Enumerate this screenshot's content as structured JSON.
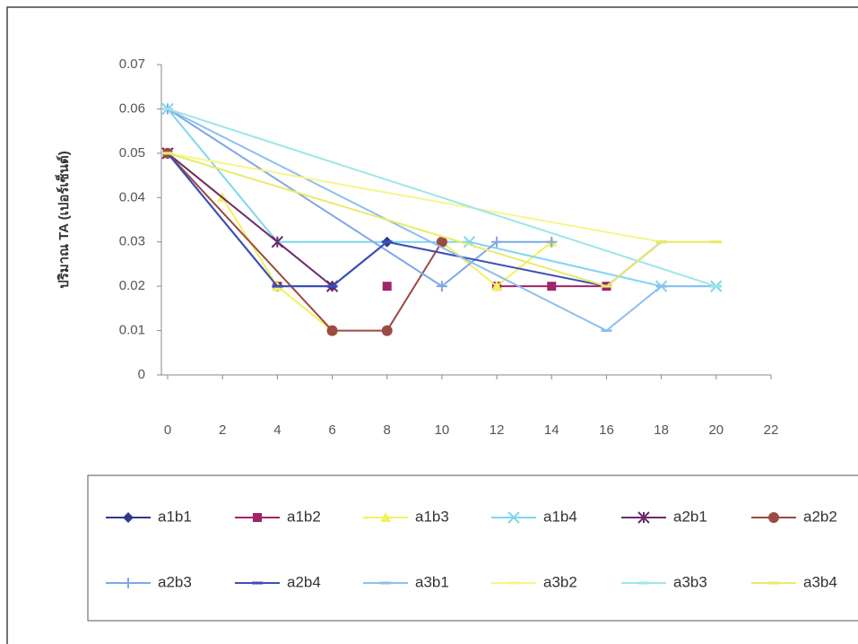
{
  "chart_data": {
    "type": "line",
    "y_label": "ปริมาณ TA (เปอร์เซ็นต์)",
    "xlim": [
      0,
      22
    ],
    "xticks": [
      0,
      2,
      4,
      6,
      8,
      10,
      12,
      14,
      16,
      18,
      20,
      22
    ],
    "ylim": [
      0,
      0.07
    ],
    "yticks": [
      0,
      0.01,
      0.02,
      0.03,
      0.04,
      0.05,
      0.06,
      0.07
    ],
    "grid": false,
    "legend": "bottom",
    "series": [
      {
        "name": "a1b1",
        "color": "#2e3a8c",
        "marker": "diamond",
        "x": [
          0,
          4,
          6,
          8
        ],
        "values": [
          0.05,
          0.02,
          0.02,
          0.03
        ]
      },
      {
        "name": "a1b2",
        "color": "#a0246c",
        "marker": "square",
        "x": [
          0,
          2,
          4,
          6,
          8,
          10,
          12,
          14,
          16
        ],
        "values": [
          0.05,
          null,
          0.02,
          null,
          0.02,
          null,
          0.02,
          0.02,
          0.02
        ]
      },
      {
        "name": "a1b3",
        "color": "#f2f25a",
        "marker": "triangle",
        "x": [
          0,
          2,
          4,
          6,
          8,
          10,
          12,
          14
        ],
        "values": [
          0.05,
          0.04,
          0.02,
          0.01,
          null,
          0.03,
          0.02,
          0.03
        ]
      },
      {
        "name": "a1b4",
        "color": "#7fd6ee",
        "marker": "x",
        "x": [
          0,
          4,
          11,
          18,
          20
        ],
        "values": [
          0.06,
          0.03,
          0.03,
          0.02,
          0.02
        ]
      },
      {
        "name": "a2b1",
        "color": "#6b2a6b",
        "marker": "star",
        "x": [
          0,
          4,
          6
        ],
        "values": [
          0.05,
          0.03,
          0.02
        ]
      },
      {
        "name": "a2b2",
        "color": "#9c4a44",
        "marker": "circle",
        "x": [
          0,
          6,
          8,
          10
        ],
        "values": [
          0.05,
          0.01,
          0.01,
          0.03
        ]
      },
      {
        "name": "a2b3",
        "color": "#7fa8e6",
        "marker": "plus",
        "x": [
          0,
          10,
          12,
          14
        ],
        "values": [
          0.06,
          0.02,
          0.03,
          0.03
        ]
      },
      {
        "name": "a2b4",
        "color": "#3b4fb8",
        "marker": "dash",
        "x": [
          0,
          4,
          6,
          8,
          16,
          18
        ],
        "values": [
          0.05,
          0.02,
          0.02,
          0.03,
          0.02,
          0.03
        ]
      },
      {
        "name": "a3b1",
        "color": "#8cc0ee",
        "marker": "dash",
        "x": [
          0,
          16,
          18,
          20
        ],
        "values": [
          0.06,
          0.01,
          0.02,
          0.02
        ]
      },
      {
        "name": "a3b2",
        "color": "#f6f68a",
        "marker": "dash",
        "x": [
          0,
          18,
          20
        ],
        "values": [
          0.05,
          0.03,
          0.03
        ]
      },
      {
        "name": "a3b3",
        "color": "#9ee6e6",
        "marker": "dash",
        "x": [
          0,
          20
        ],
        "values": [
          0.06,
          0.02
        ]
      },
      {
        "name": "a3b4",
        "color": "#eaea6a",
        "marker": "dash",
        "x": [
          0,
          16,
          18,
          20
        ],
        "values": [
          0.05,
          0.02,
          0.03,
          0.03
        ]
      }
    ]
  }
}
